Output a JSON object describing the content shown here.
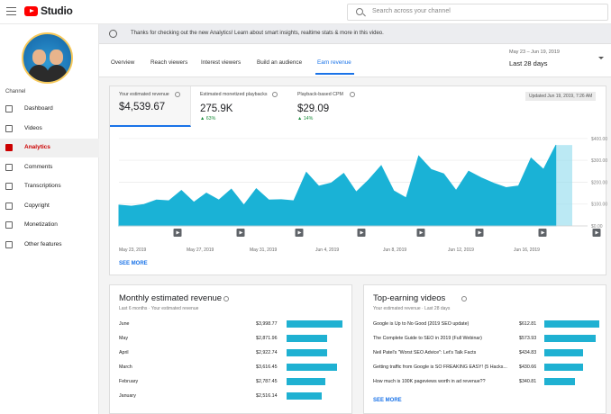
{
  "header": {
    "app_name": "Studio",
    "search_placeholder": "Search across your channel"
  },
  "sidebar": {
    "channel_label": "Channel",
    "items": [
      {
        "label": "Dashboard",
        "icon": "dashboard-icon"
      },
      {
        "label": "Videos",
        "icon": "videos-icon"
      },
      {
        "label": "Analytics",
        "icon": "analytics-icon",
        "active": true
      },
      {
        "label": "Comments",
        "icon": "comments-icon"
      },
      {
        "label": "Transcriptions",
        "icon": "transcriptions-icon"
      },
      {
        "label": "Copyright",
        "icon": "copyright-icon"
      },
      {
        "label": "Monetization",
        "icon": "monetization-icon"
      },
      {
        "label": "Other features",
        "icon": "other-features-icon"
      }
    ]
  },
  "banner": {
    "text": "Thanks for checking out the new Analytics! Learn about smart insights, realtime stats & more in this video."
  },
  "tabs": [
    {
      "label": "Overview"
    },
    {
      "label": "Reach viewers"
    },
    {
      "label": "Interest viewers"
    },
    {
      "label": "Build an audience"
    },
    {
      "label": "Earn revenue",
      "active": true
    }
  ],
  "date": {
    "range": "May 23 – Jun 19, 2019",
    "period": "Last 28 days"
  },
  "metrics": [
    {
      "label": "Your estimated revenue",
      "value": "$4,539.67",
      "delta": ""
    },
    {
      "label": "Estimated monetized playbacks",
      "value": "275.9K",
      "delta": "63%"
    },
    {
      "label": "Playback-based CPM",
      "value": "$29.09",
      "delta": "14%"
    }
  ],
  "updated": "Updated Jun 19, 2019, 7:26 AM",
  "see_more": "SEE MORE",
  "chart_data": {
    "type": "area",
    "title": "",
    "xlabel": "",
    "ylabel": "",
    "x_tick_labels": [
      "May 23, 2019",
      "May 27, 2019",
      "May 31, 2019",
      "Jun 4, 2019",
      "Jun 8, 2019",
      "Jun 12, 2019",
      "Jun 16, 2019"
    ],
    "y_tick_labels": [
      "$0.00",
      "$100.00",
      "$200.00",
      "$300.00",
      "$400.00"
    ],
    "ylim": [
      0,
      420
    ],
    "grid": true,
    "color": "#1ab2d6",
    "values": [
      95,
      90,
      98,
      118,
      115,
      162,
      108,
      150,
      118,
      168,
      95,
      170,
      118,
      120,
      115,
      245,
      182,
      196,
      240,
      155,
      210,
      275,
      160,
      128,
      320,
      258,
      238,
      162,
      250,
      220,
      195,
      175,
      183,
      310,
      258,
      370
    ]
  },
  "monthly": {
    "title": "Monthly estimated revenue",
    "subtitle": "Last 6 months · Your estimated revenue",
    "rows": [
      {
        "label": "June",
        "value": "$3,998.77",
        "amount": 3998.77
      },
      {
        "label": "May",
        "value": "$2,871.96",
        "amount": 2871.96
      },
      {
        "label": "April",
        "value": "$2,922.74",
        "amount": 2922.74
      },
      {
        "label": "March",
        "value": "$3,616.45",
        "amount": 3616.45
      },
      {
        "label": "February",
        "value": "$2,787.45",
        "amount": 2787.45
      },
      {
        "label": "January",
        "value": "$2,516.14",
        "amount": 2516.14
      }
    ]
  },
  "top_videos": {
    "title": "Top-earning videos",
    "subtitle": "Your estimated revenue · Last 28 days",
    "rows": [
      {
        "label": "Google is Up to No Good (2019 SEO update)",
        "value": "$612.81",
        "amount": 612.81
      },
      {
        "label": "The Complete Guide to SEO in 2019 (Full Webinar)",
        "value": "$573.93",
        "amount": 573.93
      },
      {
        "label": "Neil Patel's \"Worst SEO Advice\": Let's Talk Facts",
        "value": "$434.83",
        "amount": 434.83
      },
      {
        "label": "Getting traffic from Google is SO FREAKING EASY! (5 Hacks...",
        "value": "$430.66",
        "amount": 430.66
      },
      {
        "label": "How much is 100K pageviews worth in ad revenue??",
        "value": "$340.81",
        "amount": 340.81
      }
    ]
  }
}
